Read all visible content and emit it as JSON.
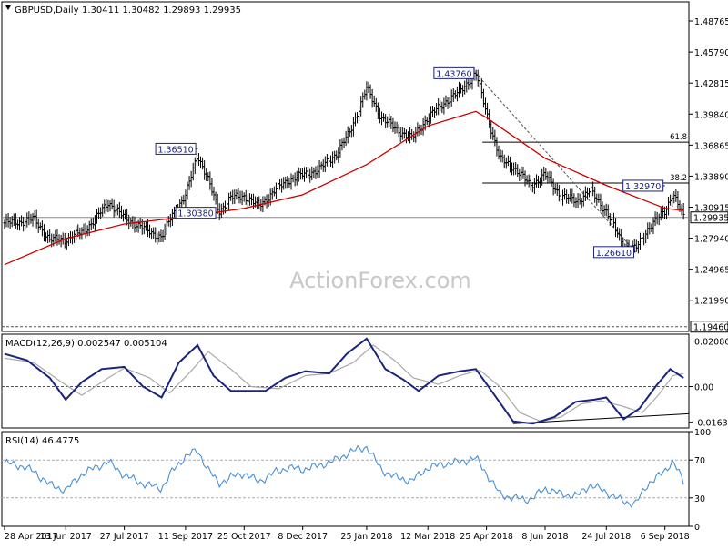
{
  "header": {
    "symbol": "GBPUSD,Daily",
    "ohlc": "1.30411 1.30482 1.29893 1.29935"
  },
  "watermark": "ActionForex.com",
  "colors": {
    "price": "#000000",
    "ma": "#cc0000",
    "macd_line": "#1a237e",
    "signal_line": "#aaaaaa",
    "rsi": "#4a90d9",
    "grid_dash": "#555555",
    "label_border": "#1a237e"
  },
  "chart_data": [
    {
      "type": "line",
      "panel": "price",
      "title": "GBPUSD,Daily",
      "y_range": [
        1.19,
        1.506
      ],
      "y_ticks": [
        "1.48765",
        "1.45790",
        "1.42815",
        "1.39840",
        "1.36865",
        "1.33890",
        "1.30915",
        "1.27940",
        "1.24965",
        "1.21990"
      ],
      "current_price": "1.29935",
      "x_ticks": [
        "28 Apr 2017",
        "13 Jun 2017",
        "27 Jul 2017",
        "11 Sep 2017",
        "25 Oct 2017",
        "8 Dec 2017",
        "25 Jan 2018",
        "12 Mar 2018",
        "25 Apr 2018",
        "8 Jun 2018",
        "24 Jul 2018",
        "6 Sep 2018"
      ],
      "series": [
        {
          "name": "",
          "x": [
            "2017-04-28",
            "2017-05-10",
            "2017-05-20",
            "2017-06-01",
            "2017-06-13",
            "2017-06-25",
            "2017-07-05",
            "2017-07-15",
            "2017-07-27",
            "2017-08-10",
            "2017-08-24",
            "2017-09-01",
            "2017-09-11",
            "2017-09-20",
            "2017-09-28",
            "2017-10-06",
            "2017-10-15",
            "2017-10-25",
            "2017-11-05",
            "2017-11-17",
            "2017-11-27",
            "2017-12-08",
            "2017-12-20",
            "2018-01-02",
            "2018-01-12",
            "2018-01-25",
            "2018-02-05",
            "2018-02-15",
            "2018-02-28",
            "2018-03-12",
            "2018-03-25",
            "2018-04-05",
            "2018-04-17",
            "2018-04-25",
            "2018-05-05",
            "2018-05-15",
            "2018-05-28",
            "2018-06-08",
            "2018-06-20",
            "2018-07-02",
            "2018-07-12",
            "2018-07-24",
            "2018-08-06",
            "2018-08-15",
            "2018-08-25",
            "2018-09-06",
            "2018-09-12",
            "2018-09-20"
          ],
          "values": [
            1.294,
            1.295,
            1.298,
            1.278,
            1.278,
            1.285,
            1.297,
            1.314,
            1.299,
            1.289,
            1.28,
            1.302,
            1.32,
            1.36,
            1.335,
            1.305,
            1.318,
            1.32,
            1.31,
            1.325,
            1.335,
            1.34,
            1.345,
            1.36,
            1.38,
            1.423,
            1.395,
            1.385,
            1.375,
            1.395,
            1.41,
            1.42,
            1.4376,
            1.4,
            1.355,
            1.348,
            1.33,
            1.34,
            1.32,
            1.315,
            1.325,
            1.305,
            1.272,
            1.269,
            1.29,
            1.305,
            1.323,
            1.2994
          ]
        },
        {
          "name": "",
          "x": [
            "2017-04-28",
            "2017-06-13",
            "2017-07-27",
            "2017-09-11",
            "2017-10-25",
            "2017-12-08",
            "2018-01-25",
            "2018-03-12",
            "2018-04-17",
            "2018-04-25",
            "2018-06-08",
            "2018-07-24",
            "2018-09-06",
            "2018-09-20"
          ],
          "values": [
            1.254,
            1.279,
            1.293,
            1.3,
            1.308,
            1.321,
            1.35,
            1.387,
            1.401,
            1.395,
            1.356,
            1.33,
            1.308,
            1.306
          ]
        }
      ],
      "annotations": [
        {
          "label": "1.43760",
          "x": "2018-04-17",
          "y": 1.4376
        },
        {
          "label": "1.36510",
          "x": "2017-09-20",
          "y": 1.3651
        },
        {
          "label": "1.30380",
          "x": "2017-10-05",
          "y": 1.3038
        },
        {
          "label": "1.32970",
          "x": "2018-09-06",
          "y": 1.3297
        },
        {
          "label": "1.26610",
          "x": "2018-08-15",
          "y": 1.2661
        },
        {
          "label": "1.19460",
          "x": "2018-09-20",
          "y": 1.1946
        }
      ],
      "fib_levels": [
        {
          "label": "61.8",
          "value": 1.3715
        },
        {
          "label": "38.2",
          "value": 1.3323
        }
      ]
    },
    {
      "type": "line",
      "panel": "macd",
      "title": "MACD(12,26,9) 0.002547 0.005104",
      "y_range": [
        -0.019,
        0.024
      ],
      "y_ticks": [
        "0.020861",
        "0.00",
        "-0.016357"
      ],
      "series": [
        {
          "name": "",
          "x": [
            "2017-04-28",
            "2017-05-15",
            "2017-06-01",
            "2017-06-13",
            "2017-06-25",
            "2017-07-10",
            "2017-07-27",
            "2017-08-10",
            "2017-08-24",
            "2017-09-06",
            "2017-09-20",
            "2017-10-02",
            "2017-10-15",
            "2017-10-25",
            "2017-11-10",
            "2017-11-25",
            "2017-12-10",
            "2017-12-28",
            "2018-01-10",
            "2018-01-25",
            "2018-02-08",
            "2018-02-22",
            "2018-03-05",
            "2018-03-20",
            "2018-04-05",
            "2018-04-17",
            "2018-04-30",
            "2018-05-15",
            "2018-05-30",
            "2018-06-15",
            "2018-07-01",
            "2018-07-15",
            "2018-07-24",
            "2018-08-06",
            "2018-08-18",
            "2018-08-30",
            "2018-09-10",
            "2018-09-20"
          ],
          "values": [
            0.015,
            0.012,
            0.004,
            -0.006,
            0.002,
            0.008,
            0.009,
            0.0,
            -0.005,
            0.011,
            0.019,
            0.005,
            -0.002,
            -0.002,
            -0.002,
            0.004,
            0.007,
            0.006,
            0.015,
            0.022,
            0.008,
            0.003,
            -0.002,
            0.005,
            0.007,
            0.008,
            -0.003,
            -0.016,
            -0.017,
            -0.014,
            -0.007,
            -0.006,
            -0.005,
            -0.015,
            -0.01,
            0.0,
            0.008,
            0.004
          ]
        },
        {
          "name": "",
          "x": [
            "2017-04-28",
            "2017-05-20",
            "2017-06-10",
            "2017-06-25",
            "2017-07-15",
            "2017-07-27",
            "2017-08-15",
            "2017-08-30",
            "2017-09-15",
            "2017-09-28",
            "2017-10-15",
            "2017-10-30",
            "2017-11-20",
            "2017-12-10",
            "2017-12-28",
            "2018-01-15",
            "2018-01-30",
            "2018-02-15",
            "2018-03-01",
            "2018-03-20",
            "2018-04-05",
            "2018-04-20",
            "2018-05-05",
            "2018-05-20",
            "2018-06-05",
            "2018-06-20",
            "2018-07-05",
            "2018-07-20",
            "2018-08-05",
            "2018-08-20",
            "2018-09-01",
            "2018-09-12",
            "2018-09-20"
          ],
          "values": [
            0.013,
            0.011,
            0.002,
            -0.004,
            0.004,
            0.0085,
            0.004,
            -0.003,
            0.007,
            0.016,
            0.008,
            0.0,
            -0.001,
            0.005,
            0.006,
            0.011,
            0.019,
            0.012,
            0.004,
            0.001,
            0.005,
            0.0075,
            0.0,
            -0.012,
            -0.016,
            -0.014,
            -0.008,
            -0.0065,
            -0.009,
            -0.012,
            -0.004,
            0.005,
            0.006
          ]
        }
      ]
    },
    {
      "type": "line",
      "panel": "rsi",
      "title": "RSI(14) 46.4775",
      "y_range": [
        0,
        100
      ],
      "y_ticks": [
        "100",
        "70",
        "30",
        "0"
      ],
      "series": [
        {
          "name": "",
          "x": [
            "2017-04-28",
            "2017-05-10",
            "2017-05-20",
            "2017-06-01",
            "2017-06-13",
            "2017-06-25",
            "2017-07-05",
            "2017-07-15",
            "2017-07-27",
            "2017-08-10",
            "2017-08-24",
            "2017-09-01",
            "2017-09-11",
            "2017-09-20",
            "2017-09-28",
            "2017-10-06",
            "2017-10-15",
            "2017-10-25",
            "2017-11-05",
            "2017-11-17",
            "2017-11-27",
            "2017-12-08",
            "2017-12-20",
            "2018-01-02",
            "2018-01-12",
            "2018-01-25",
            "2018-02-05",
            "2018-02-15",
            "2018-02-28",
            "2018-03-12",
            "2018-03-25",
            "2018-04-05",
            "2018-04-17",
            "2018-04-25",
            "2018-05-05",
            "2018-05-15",
            "2018-05-28",
            "2018-06-08",
            "2018-06-20",
            "2018-07-02",
            "2018-07-12",
            "2018-07-24",
            "2018-08-06",
            "2018-08-15",
            "2018-08-25",
            "2018-09-06",
            "2018-09-12",
            "2018-09-20"
          ],
          "values": [
            67,
            64,
            58,
            44,
            38,
            55,
            62,
            68,
            54,
            45,
            40,
            58,
            74,
            80,
            60,
            45,
            52,
            56,
            47,
            57,
            62,
            60,
            64,
            70,
            78,
            84,
            60,
            52,
            48,
            62,
            66,
            68,
            72,
            56,
            34,
            30,
            28,
            40,
            34,
            32,
            44,
            36,
            26,
            24,
            46,
            58,
            70,
            46
          ]
        }
      ]
    }
  ]
}
